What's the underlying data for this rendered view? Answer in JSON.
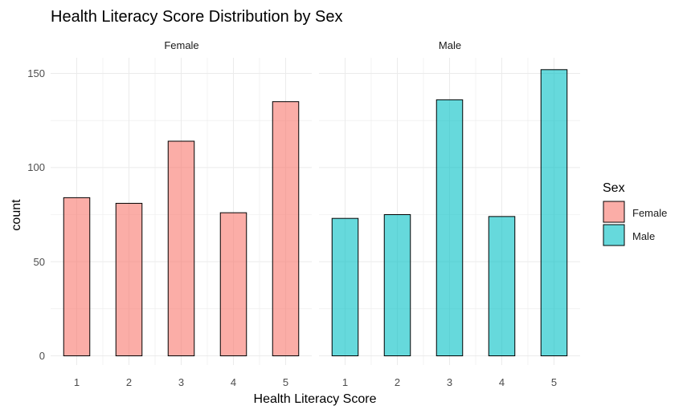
{
  "chart_data": {
    "type": "bar",
    "title": "Health Literacy Score Distribution by Sex",
    "xlabel": "Health Literacy Score",
    "ylabel": "count",
    "categories": [
      "1",
      "2",
      "3",
      "4",
      "5"
    ],
    "ylim": [
      0,
      160
    ],
    "yticks": [
      "0",
      "50",
      "100",
      "150"
    ],
    "grid": true,
    "legend": {
      "title": "Sex",
      "placement": "right",
      "entries": [
        "Female",
        "Male"
      ]
    },
    "facets": [
      {
        "name": "Female",
        "color": "#F8766D",
        "values": [
          84,
          81,
          114,
          76,
          135
        ]
      },
      {
        "name": "Male",
        "color": "#00BFC4",
        "values": [
          73,
          75,
          136,
          74,
          152
        ]
      }
    ]
  }
}
